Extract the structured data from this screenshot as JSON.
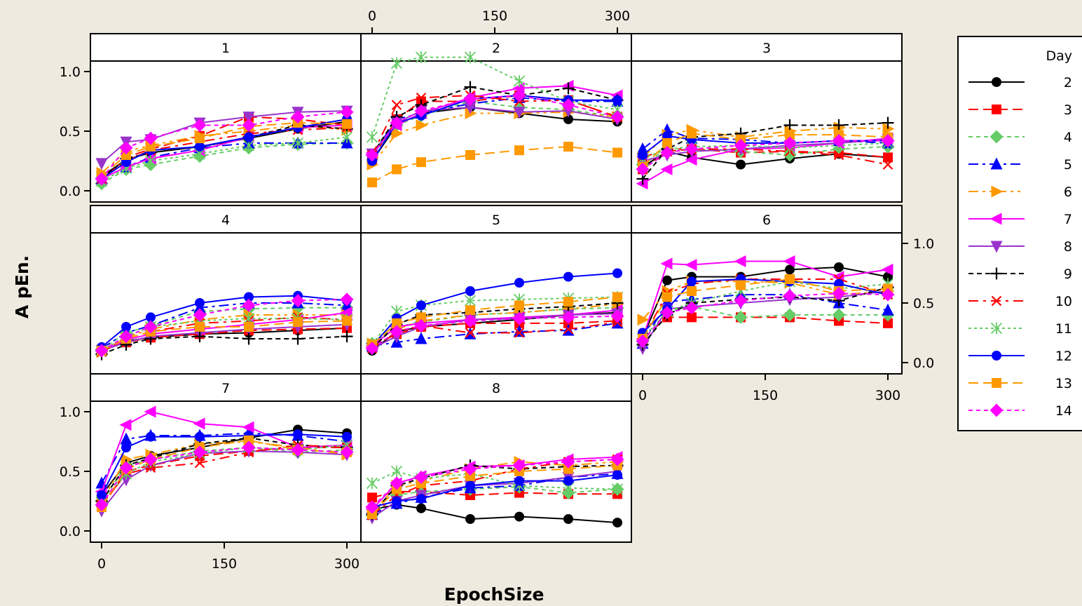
{
  "chart_data": {
    "type": "line",
    "xlabel": "EpochSize",
    "ylabel": "A pEn.",
    "xlim": [
      0,
      300
    ],
    "ylim": [
      0,
      1.2
    ],
    "xticks": [
      0,
      150,
      300
    ],
    "xtick_labels": [
      "0",
      "150",
      "300"
    ],
    "yticks": [
      0,
      0.5,
      1.0
    ],
    "ytick_labels": [
      "0.0",
      "0.5",
      "1.0"
    ],
    "x": [
      0,
      30,
      60,
      120,
      180,
      240,
      300
    ],
    "legend": {
      "title": "Day",
      "entries": [
        "2",
        "3",
        "4",
        "5",
        "6",
        "7",
        "8",
        "9",
        "10",
        "11",
        "12",
        "13",
        "14"
      ]
    },
    "series_style": [
      {
        "name": "2",
        "color": "#000000",
        "marker": "circle",
        "dash": ""
      },
      {
        "name": "3",
        "color": "#FF0000",
        "marker": "square",
        "dash": "14,7"
      },
      {
        "name": "4",
        "color": "#66CC66",
        "marker": "diamond",
        "dash": "6,5"
      },
      {
        "name": "5",
        "color": "#0000FF",
        "marker": "triangle-up",
        "dash": "14,6,4,6"
      },
      {
        "name": "6",
        "color": "#FF9900",
        "marker": "triangle-right",
        "dash": "14,6,4,6,4,6"
      },
      {
        "name": "7",
        "color": "#FF00FF",
        "marker": "triangle-left",
        "dash": ""
      },
      {
        "name": "8",
        "color": "#9933CC",
        "marker": "triangle-down",
        "dash": ""
      },
      {
        "name": "9",
        "color": "#000000",
        "marker": "plus",
        "dash": "7,5"
      },
      {
        "name": "10",
        "color": "#FF0000",
        "marker": "x",
        "dash": "14,7,4,7"
      },
      {
        "name": "11",
        "color": "#66CC66",
        "marker": "asterisk",
        "dash": "4,4"
      },
      {
        "name": "12",
        "color": "#0000FF",
        "marker": "circle",
        "dash": ""
      },
      {
        "name": "13",
        "color": "#FF9900",
        "marker": "square",
        "dash": "14,7"
      },
      {
        "name": "14",
        "color": "#FF00FF",
        "marker": "diamond",
        "dash": "6,5"
      }
    ],
    "panels": [
      {
        "label": "1",
        "series": [
          [
            0.12,
            0.26,
            0.32,
            0.37,
            0.44,
            0.52,
            0.58
          ],
          [
            0.08,
            0.28,
            0.35,
            0.46,
            0.62,
            0.6,
            0.55
          ],
          [
            0.06,
            0.18,
            0.22,
            0.29,
            0.36,
            0.39,
            0.4
          ],
          [
            0.1,
            0.2,
            0.28,
            0.36,
            0.4,
            0.4,
            0.4
          ],
          [
            0.15,
            0.33,
            0.38,
            0.46,
            0.5,
            0.55,
            0.51
          ],
          [
            0.1,
            0.2,
            0.27,
            0.34,
            0.45,
            0.53,
            0.55
          ],
          [
            0.23,
            0.41,
            0.43,
            0.57,
            0.62,
            0.66,
            0.67
          ],
          [
            0.1,
            0.27,
            0.32,
            0.37,
            0.45,
            0.55,
            0.52
          ],
          [
            0.1,
            0.25,
            0.34,
            0.41,
            0.48,
            0.51,
            0.53
          ],
          [
            0.08,
            0.19,
            0.25,
            0.31,
            0.38,
            0.4,
            0.45
          ],
          [
            0.1,
            0.24,
            0.34,
            0.37,
            0.45,
            0.53,
            0.6
          ],
          [
            0.12,
            0.3,
            0.37,
            0.44,
            0.54,
            0.57,
            0.56
          ],
          [
            0.1,
            0.36,
            0.44,
            0.55,
            0.55,
            0.62,
            0.66
          ]
        ]
      },
      {
        "label": "2",
        "series": [
          [
            0.25,
            0.55,
            0.65,
            0.7,
            0.65,
            0.6,
            0.58
          ],
          [
            0.27,
            0.6,
            0.75,
            0.75,
            0.8,
            0.76,
            0.62
          ],
          [
            0.3,
            0.55,
            0.63,
            0.75,
            0.7,
            0.68,
            0.62
          ],
          [
            0.3,
            0.6,
            0.65,
            0.73,
            0.78,
            0.75,
            0.75
          ],
          [
            0.22,
            0.48,
            0.55,
            0.65,
            0.65,
            0.66,
            0.62
          ],
          [
            0.32,
            0.55,
            0.65,
            0.78,
            0.86,
            0.88,
            0.8
          ],
          [
            0.31,
            0.57,
            0.67,
            0.7,
            0.66,
            0.67,
            0.6
          ],
          [
            0.3,
            0.62,
            0.72,
            0.87,
            0.8,
            0.86,
            0.76
          ],
          [
            0.3,
            0.72,
            0.78,
            0.8,
            0.75,
            0.76,
            0.62
          ],
          [
            0.45,
            1.07,
            1.12,
            1.12,
            0.92,
            0.75,
            0.68
          ],
          [
            0.25,
            0.57,
            0.63,
            0.77,
            0.8,
            0.76,
            0.76
          ],
          [
            0.07,
            0.18,
            0.24,
            0.3,
            0.34,
            0.37,
            0.32
          ],
          [
            0.3,
            0.57,
            0.67,
            0.77,
            0.8,
            0.72,
            0.62
          ]
        ]
      },
      {
        "label": "3",
        "series": [
          [
            0.2,
            0.33,
            0.28,
            0.22,
            0.27,
            0.31,
            0.28
          ],
          [
            0.18,
            0.33,
            0.35,
            0.32,
            0.33,
            0.32,
            0.28
          ],
          [
            0.22,
            0.35,
            0.35,
            0.33,
            0.3,
            0.35,
            0.37
          ],
          [
            0.35,
            0.51,
            0.44,
            0.43,
            0.4,
            0.42,
            0.4
          ],
          [
            0.28,
            0.47,
            0.51,
            0.45,
            0.5,
            0.53,
            0.52
          ],
          [
            0.06,
            0.18,
            0.26,
            0.35,
            0.36,
            0.4,
            0.44
          ],
          [
            0.25,
            0.3,
            0.33,
            0.35,
            0.38,
            0.4,
            0.43
          ],
          [
            0.1,
            0.35,
            0.45,
            0.48,
            0.55,
            0.55,
            0.57
          ],
          [
            0.28,
            0.35,
            0.35,
            0.35,
            0.33,
            0.3,
            0.22
          ],
          [
            0.27,
            0.35,
            0.37,
            0.38,
            0.36,
            0.38,
            0.4
          ],
          [
            0.3,
            0.46,
            0.43,
            0.4,
            0.4,
            0.42,
            0.42
          ],
          [
            0.2,
            0.4,
            0.48,
            0.43,
            0.47,
            0.47,
            0.45
          ],
          [
            0.18,
            0.32,
            0.35,
            0.38,
            0.4,
            0.42,
            0.42
          ]
        ]
      },
      {
        "label": "4",
        "series": [
          [
            0.1,
            0.18,
            0.21,
            0.24,
            0.25,
            0.27,
            0.29
          ],
          [
            0.11,
            0.17,
            0.21,
            0.24,
            0.27,
            0.28,
            0.29
          ],
          [
            0.11,
            0.25,
            0.31,
            0.43,
            0.45,
            0.46,
            0.46
          ],
          [
            0.12,
            0.25,
            0.31,
            0.46,
            0.5,
            0.5,
            0.48
          ],
          [
            0.09,
            0.21,
            0.28,
            0.36,
            0.4,
            0.4,
            0.4
          ],
          [
            0.1,
            0.19,
            0.24,
            0.28,
            0.32,
            0.36,
            0.42
          ],
          [
            0.1,
            0.17,
            0.22,
            0.25,
            0.28,
            0.3,
            0.32
          ],
          [
            0.07,
            0.15,
            0.2,
            0.22,
            0.2,
            0.2,
            0.22
          ],
          [
            0.09,
            0.2,
            0.26,
            0.33,
            0.35,
            0.38,
            0.36
          ],
          [
            0.1,
            0.22,
            0.3,
            0.35,
            0.37,
            0.37,
            0.36
          ],
          [
            0.13,
            0.3,
            0.38,
            0.5,
            0.55,
            0.56,
            0.52
          ],
          [
            0.1,
            0.2,
            0.26,
            0.3,
            0.3,
            0.34,
            0.35
          ],
          [
            0.1,
            0.22,
            0.3,
            0.4,
            0.48,
            0.52,
            0.53
          ]
        ]
      },
      {
        "label": "5",
        "series": [
          [
            0.1,
            0.26,
            0.3,
            0.33,
            0.36,
            0.4,
            0.42
          ],
          [
            0.14,
            0.24,
            0.3,
            0.33,
            0.33,
            0.33,
            0.35
          ],
          [
            0.16,
            0.3,
            0.34,
            0.4,
            0.42,
            0.45,
            0.46
          ],
          [
            0.14,
            0.17,
            0.2,
            0.24,
            0.26,
            0.27,
            0.33
          ],
          [
            0.16,
            0.28,
            0.35,
            0.4,
            0.42,
            0.45,
            0.49
          ],
          [
            0.14,
            0.3,
            0.33,
            0.36,
            0.38,
            0.4,
            0.44
          ],
          [
            0.12,
            0.22,
            0.3,
            0.36,
            0.37,
            0.4,
            0.41
          ],
          [
            0.12,
            0.32,
            0.4,
            0.42,
            0.45,
            0.47,
            0.5
          ],
          [
            0.12,
            0.26,
            0.31,
            0.25,
            0.25,
            0.28,
            0.34
          ],
          [
            0.15,
            0.43,
            0.48,
            0.52,
            0.53,
            0.54,
            0.55
          ],
          [
            0.14,
            0.37,
            0.48,
            0.6,
            0.67,
            0.72,
            0.75
          ],
          [
            0.15,
            0.33,
            0.38,
            0.44,
            0.48,
            0.51,
            0.55
          ],
          [
            0.12,
            0.26,
            0.31,
            0.35,
            0.37,
            0.38,
            0.39
          ]
        ]
      },
      {
        "label": "6",
        "series": [
          [
            0.21,
            0.69,
            0.72,
            0.72,
            0.78,
            0.8,
            0.72
          ],
          [
            0.2,
            0.38,
            0.38,
            0.38,
            0.38,
            0.35,
            0.33
          ],
          [
            0.18,
            0.43,
            0.47,
            0.38,
            0.4,
            0.4,
            0.4
          ],
          [
            0.16,
            0.51,
            0.53,
            0.57,
            0.57,
            0.5,
            0.44
          ],
          [
            0.36,
            0.6,
            0.68,
            0.68,
            0.67,
            0.57,
            0.6
          ],
          [
            0.2,
            0.83,
            0.82,
            0.85,
            0.85,
            0.72,
            0.78
          ],
          [
            0.12,
            0.45,
            0.47,
            0.5,
            0.53,
            0.55,
            0.6
          ],
          [
            0.15,
            0.4,
            0.5,
            0.53,
            0.55,
            0.52,
            0.63
          ],
          [
            0.2,
            0.58,
            0.66,
            0.7,
            0.7,
            0.7,
            0.57
          ],
          [
            0.2,
            0.43,
            0.5,
            0.6,
            0.68,
            0.62,
            0.66
          ],
          [
            0.25,
            0.45,
            0.68,
            0.7,
            0.68,
            0.66,
            0.57
          ],
          [
            0.2,
            0.55,
            0.6,
            0.65,
            0.7,
            0.6,
            0.62
          ],
          [
            0.18,
            0.42,
            0.46,
            0.52,
            0.56,
            0.58,
            0.57
          ]
        ]
      },
      {
        "label": "7",
        "series": [
          [
            0.3,
            0.57,
            0.63,
            0.7,
            0.78,
            0.85,
            0.82
          ],
          [
            0.2,
            0.5,
            0.55,
            0.63,
            0.67,
            0.7,
            0.7
          ],
          [
            0.25,
            0.55,
            0.6,
            0.67,
            0.7,
            0.66,
            0.68
          ],
          [
            0.4,
            0.77,
            0.8,
            0.8,
            0.82,
            0.8,
            0.75
          ],
          [
            0.25,
            0.6,
            0.64,
            0.73,
            0.75,
            0.7,
            0.64
          ],
          [
            0.33,
            0.89,
            1.0,
            0.9,
            0.87,
            0.7,
            0.72
          ],
          [
            0.17,
            0.43,
            0.55,
            0.65,
            0.67,
            0.66,
            0.64
          ],
          [
            0.25,
            0.55,
            0.61,
            0.73,
            0.78,
            0.72,
            0.7
          ],
          [
            0.22,
            0.48,
            0.53,
            0.57,
            0.66,
            0.72,
            0.7
          ],
          [
            0.24,
            0.48,
            0.58,
            0.65,
            0.7,
            0.68,
            0.72
          ],
          [
            0.3,
            0.7,
            0.79,
            0.79,
            0.8,
            0.81,
            0.79
          ],
          [
            0.2,
            0.52,
            0.6,
            0.7,
            0.76,
            0.68,
            0.66
          ],
          [
            0.22,
            0.53,
            0.6,
            0.66,
            0.7,
            0.68,
            0.66
          ]
        ]
      },
      {
        "label": "8",
        "series": [
          [
            0.18,
            0.22,
            0.19,
            0.1,
            0.12,
            0.1,
            0.07
          ],
          [
            0.28,
            0.33,
            0.33,
            0.3,
            0.32,
            0.31,
            0.31
          ],
          [
            0.13,
            0.3,
            0.33,
            0.35,
            0.37,
            0.32,
            0.35
          ],
          [
            0.14,
            0.23,
            0.28,
            0.36,
            0.38,
            0.45,
            0.48
          ],
          [
            0.15,
            0.38,
            0.42,
            0.52,
            0.58,
            0.55,
            0.58
          ],
          [
            0.18,
            0.4,
            0.46,
            0.54,
            0.55,
            0.6,
            0.62
          ],
          [
            0.11,
            0.25,
            0.3,
            0.38,
            0.4,
            0.45,
            0.5
          ],
          [
            0.14,
            0.38,
            0.44,
            0.55,
            0.52,
            0.54,
            0.55
          ],
          [
            0.13,
            0.3,
            0.38,
            0.42,
            0.52,
            0.58,
            0.6
          ],
          [
            0.4,
            0.5,
            0.44,
            0.48,
            0.38,
            0.36,
            0.35
          ],
          [
            0.2,
            0.25,
            0.27,
            0.38,
            0.42,
            0.42,
            0.47
          ],
          [
            0.14,
            0.35,
            0.4,
            0.46,
            0.5,
            0.52,
            0.55
          ],
          [
            0.2,
            0.4,
            0.45,
            0.52,
            0.55,
            0.58,
            0.6
          ]
        ]
      }
    ]
  }
}
